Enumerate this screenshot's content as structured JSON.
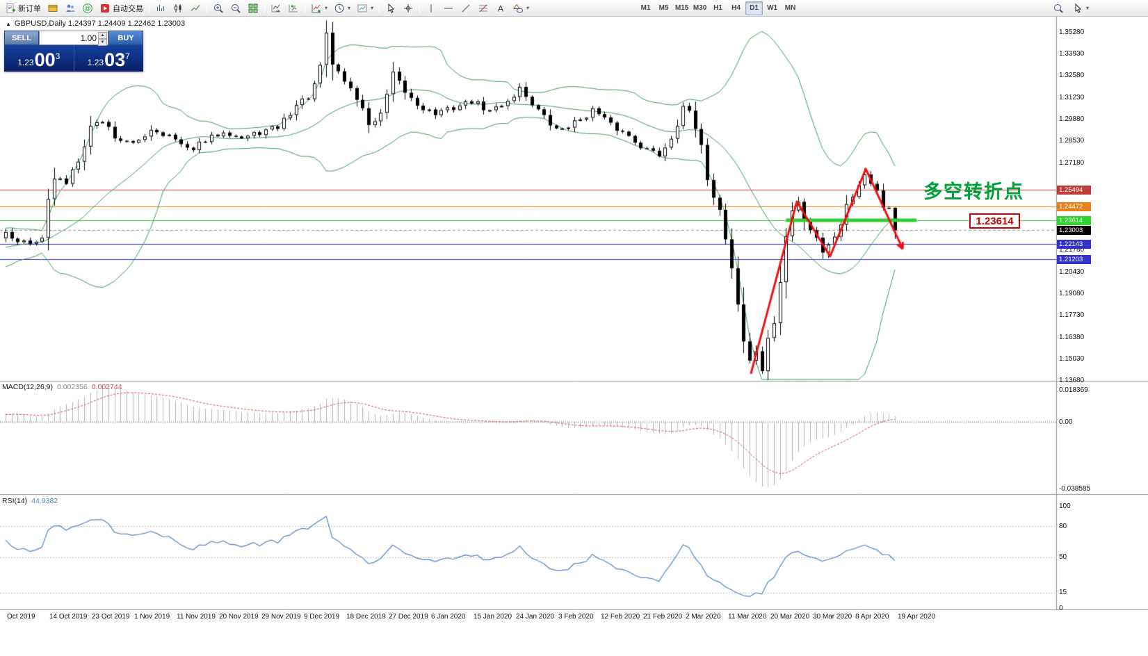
{
  "toolbar": {
    "new_order": "新订单",
    "autotrading": "自动交易",
    "timeframes": [
      "M1",
      "M5",
      "M15",
      "M30",
      "H1",
      "H4",
      "D1",
      "W1",
      "MN"
    ],
    "active_timeframe": "D1"
  },
  "symbol_bar": {
    "toggle": "▲",
    "text": "GBPUSD,Daily 1.24397 1.24409 1.22462 1.23003"
  },
  "trade_panel": {
    "sell_label": "SELL",
    "buy_label": "BUY",
    "volume": "1.00",
    "sell_price": {
      "big": "1.23",
      "pips": "00",
      "sup": "3"
    },
    "buy_price": {
      "big": "1.23",
      "pips": "03",
      "sup": "7"
    }
  },
  "annotation": {
    "text": "多空转折点",
    "color": "#00a13a"
  },
  "level_callout": {
    "text": "1.23614",
    "color": "#d00000"
  },
  "indicators": {
    "macd": {
      "name": "MACD(12,26,9)",
      "main_value": "0.002356",
      "signal_value": "0.002744",
      "axis": [
        {
          "label": "0.018369",
          "value": 0.018369
        },
        {
          "label": "0.00",
          "value": 0
        },
        {
          "label": "-0.038585",
          "value": -0.038585
        }
      ]
    },
    "rsi": {
      "name": "RSI(14)",
      "value": "44.9382",
      "axis": [
        {
          "label": "100",
          "value": 100
        },
        {
          "label": "80",
          "value": 80
        },
        {
          "label": "50",
          "value": 50
        },
        {
          "label": "15",
          "value": 15
        },
        {
          "label": "0",
          "value": 0
        }
      ],
      "levels": [
        80,
        50,
        15
      ]
    }
  },
  "price_axis": {
    "ticks": [
      "1.35280",
      "1.33930",
      "1.32580",
      "1.31230",
      "1.29880",
      "1.28530",
      "1.27180",
      "1.25830",
      "1.24480",
      "1.23130",
      "1.21780",
      "1.20430",
      "1.19080",
      "1.17730",
      "1.16380",
      "1.15030",
      "1.13680"
    ]
  },
  "date_axis": [
    "Oct 2019",
    "14 Oct 2019",
    "23 Oct 2019",
    "1 Nov 2019",
    "11 Nov 2019",
    "20 Nov 2019",
    "29 Nov 2019",
    "9 Dec 2019",
    "18 Dec 2019",
    "27 Dec 2019",
    "6 Jan 2020",
    "15 Jan 2020",
    "24 Jan 2020",
    "3 Feb 2020",
    "12 Feb 2020",
    "21 Feb 2020",
    "2 Mar 2020",
    "11 Mar 2020",
    "20 Mar 2020",
    "30 Mar 2020",
    "8 Apr 2020",
    "19 Apr 2020"
  ],
  "chart_data": {
    "type": "candlestick",
    "symbol": "GBPUSD",
    "period": "Daily",
    "ohlc_current": {
      "open": 1.24397,
      "high": 1.24409,
      "low": 1.22462,
      "close": 1.23003
    },
    "num_candles": 148,
    "price_range": {
      "top_label": 1.3528,
      "bottom_label": 1.1368
    },
    "price_anchors": [
      [
        0,
        1.23
      ],
      [
        2,
        1.2238
      ],
      [
        4,
        1.2215
      ],
      [
        6,
        1.229
      ],
      [
        8,
        1.262
      ],
      [
        10,
        1.26
      ],
      [
        12,
        1.276
      ],
      [
        14,
        1.2945
      ],
      [
        16,
        1.2985
      ],
      [
        18,
        1.288
      ],
      [
        21,
        1.2825
      ],
      [
        24,
        1.293
      ],
      [
        27,
        1.2885
      ],
      [
        30,
        1.2795
      ],
      [
        33,
        1.285
      ],
      [
        36,
        1.292
      ],
      [
        39,
        1.287
      ],
      [
        42,
        1.2905
      ],
      [
        45,
        1.294
      ],
      [
        48,
        1.3075
      ],
      [
        51,
        1.3155
      ],
      [
        53,
        1.348
      ],
      [
        54,
        1.333
      ],
      [
        56,
        1.323
      ],
      [
        58,
        1.312
      ],
      [
        60,
        1.296
      ],
      [
        62,
        1.2995
      ],
      [
        64,
        1.3255
      ],
      [
        66,
        1.3155
      ],
      [
        68,
        1.308
      ],
      [
        71,
        1.302
      ],
      [
        74,
        1.306
      ],
      [
        77,
        1.31
      ],
      [
        80,
        1.3035
      ],
      [
        83,
        1.3105
      ],
      [
        85,
        1.318
      ],
      [
        87,
        1.309
      ],
      [
        89,
        1.2995
      ],
      [
        91,
        1.292
      ],
      [
        94,
        1.2965
      ],
      [
        97,
        1.3045
      ],
      [
        100,
        1.295
      ],
      [
        103,
        1.2885
      ],
      [
        106,
        1.28
      ],
      [
        108,
        1.277
      ],
      [
        110,
        1.288
      ],
      [
        112,
        1.309
      ],
      [
        114,
        1.292
      ],
      [
        116,
        1.264
      ],
      [
        118,
        1.242
      ],
      [
        119,
        1.227
      ],
      [
        120,
        1.208
      ],
      [
        121,
        1.185
      ],
      [
        122,
        1.162
      ],
      [
        123,
        1.148
      ],
      [
        124,
        1.156
      ],
      [
        125,
        1.1445
      ],
      [
        126,
        1.159
      ],
      [
        127,
        1.175
      ],
      [
        128,
        1.198
      ],
      [
        129,
        1.225
      ],
      [
        130,
        1.242
      ],
      [
        131,
        1.247
      ],
      [
        132,
        1.238
      ],
      [
        133,
        1.231
      ],
      [
        134,
        1.227
      ],
      [
        135,
        1.217
      ],
      [
        136,
        1.22
      ],
      [
        137,
        1.228
      ],
      [
        138,
        1.236
      ],
      [
        139,
        1.245
      ],
      [
        140,
        1.252
      ],
      [
        141,
        1.26
      ],
      [
        142,
        1.2655
      ],
      [
        143,
        1.262
      ],
      [
        144,
        1.254
      ],
      [
        145,
        1.245
      ],
      [
        146,
        1.244
      ],
      [
        147,
        1.23
      ]
    ],
    "hlines": [
      {
        "value": 1.25494,
        "label": "1.25494",
        "color": "#c03a3a",
        "style": "solid"
      },
      {
        "value": 1.24472,
        "label": "1.24472",
        "color": "#e8821e",
        "style": "solid"
      },
      {
        "value": 1.23614,
        "label": "1.23614",
        "color": "#2fd12f",
        "style": "solid"
      },
      {
        "value": 1.23003,
        "label": "1.23003",
        "color": "#000000",
        "style": "current"
      },
      {
        "value": 1.22143,
        "label": "1.22143",
        "color": "#3333cc",
        "style": "solid"
      },
      {
        "value": 1.21203,
        "label": "1.21203",
        "color": "#3333cc",
        "style": "solid"
      }
    ],
    "support_segment": {
      "price": 1.23614,
      "from_index": 129,
      "to_index": 150.6,
      "width": 5
    },
    "zigzag": {
      "points": [
        [
          123.2,
          1.1412
        ],
        [
          130.8,
          1.2478
        ],
        [
          136.3,
          1.2138
        ],
        [
          142.2,
          1.268
        ],
        [
          148.3,
          1.2185
        ]
      ]
    },
    "bollinger": {
      "period": 20,
      "deviation": 2
    },
    "macd_params": {
      "fast": 12,
      "slow": 26,
      "signal": 9
    },
    "rsi_params": {
      "period": 14
    },
    "colors": {
      "background": "#ffffff",
      "candle_up_fill": "#ffffff",
      "candle_down_fill": "#000000",
      "candle_outline": "#000000",
      "bollinger": "#3aa05a",
      "macd_histogram": "#b4b4b4",
      "macd_signal": "#e04848",
      "rsi_line": "#4a86c8",
      "support_segment": "#2fd12f",
      "zigzag": "#f01010",
      "separator": "#909090",
      "axis_text": "#111111"
    }
  }
}
